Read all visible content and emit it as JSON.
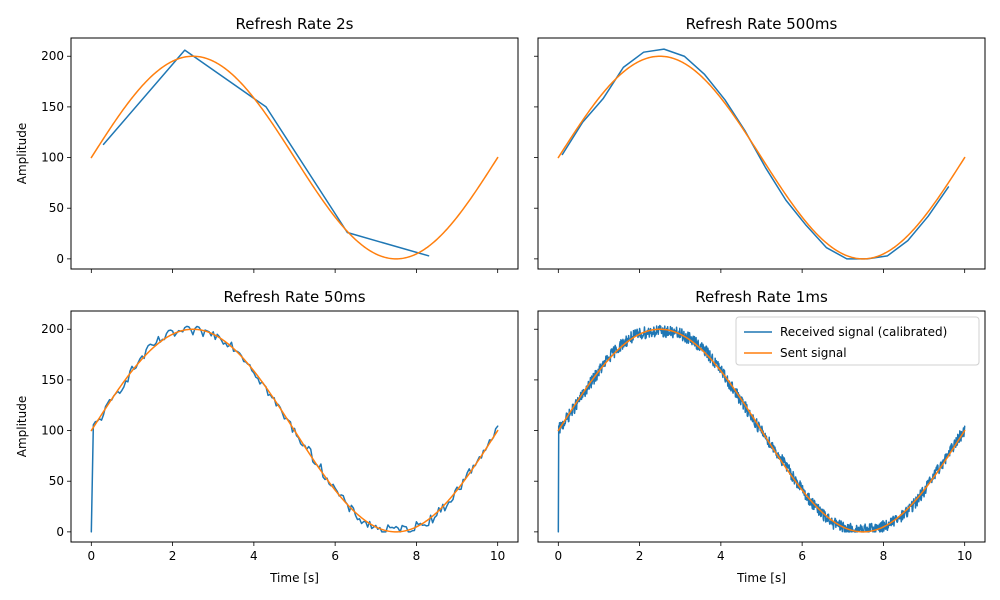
{
  "chart_data": [
    {
      "type": "line",
      "title": "Refresh Rate 2s",
      "xlabel": "",
      "ylabel": "Amplitude",
      "xlim": [
        -0.5,
        10.5
      ],
      "ylim": [
        -10,
        218
      ],
      "xticks": [
        0,
        2,
        4,
        6,
        8,
        10
      ],
      "yticks": [
        0,
        50,
        100,
        150,
        200
      ],
      "show_xticklabels": false,
      "show_yticklabels": true,
      "series": [
        {
          "name": "Received signal (calibrated)",
          "color": "#1f77b4",
          "kind": "points",
          "x": [
            0.3,
            2.3,
            4.3,
            6.3,
            8.3
          ],
          "y": [
            113,
            206,
            150,
            26,
            3
          ]
        },
        {
          "name": "Sent signal",
          "color": "#ff7f0e",
          "kind": "function",
          "formula": "100 + 100*sin(2*pi*x/10)",
          "x_range": [
            0,
            10
          ]
        }
      ]
    },
    {
      "type": "line",
      "title": "Refresh Rate 500ms",
      "xlabel": "",
      "ylabel": "",
      "xlim": [
        -0.5,
        10.5
      ],
      "ylim": [
        -10,
        218
      ],
      "xticks": [
        0,
        2,
        4,
        6,
        8,
        10
      ],
      "yticks": [
        0,
        50,
        100,
        150,
        200
      ],
      "show_xticklabels": false,
      "show_yticklabels": false,
      "series": [
        {
          "name": "Received signal (calibrated)",
          "color": "#1f77b4",
          "kind": "points",
          "x": [
            0.1,
            0.6,
            1.1,
            1.6,
            2.1,
            2.6,
            3.1,
            3.6,
            4.1,
            4.6,
            5.1,
            5.6,
            6.1,
            6.6,
            7.1,
            7.6,
            8.1,
            8.6,
            9.1,
            9.6
          ],
          "y": [
            103,
            135,
            158,
            189,
            204,
            207,
            200,
            182,
            157,
            126,
            90,
            58,
            33,
            11,
            0,
            0,
            3,
            18,
            42,
            71
          ]
        },
        {
          "name": "Sent signal",
          "color": "#ff7f0e",
          "kind": "function",
          "formula": "100 + 100*sin(2*pi*x/10)",
          "x_range": [
            0,
            10
          ]
        }
      ]
    },
    {
      "type": "line",
      "title": "Refresh Rate 50ms",
      "xlabel": "Time [s]",
      "ylabel": "Amplitude",
      "xlim": [
        -0.5,
        10.5
      ],
      "ylim": [
        -10,
        218
      ],
      "xticks": [
        0,
        2,
        4,
        6,
        8,
        10
      ],
      "yticks": [
        0,
        50,
        100,
        150,
        200
      ],
      "show_xticklabels": true,
      "show_yticklabels": true,
      "series": [
        {
          "name": "Received signal (calibrated)",
          "color": "#1f77b4",
          "kind": "noisy",
          "formula": "calibrated copy of the sent signal",
          "start_value": 0,
          "step": 0.05,
          "noise_amplitude": 5,
          "x_range": [
            0,
            10
          ]
        },
        {
          "name": "Sent signal",
          "color": "#ff7f0e",
          "kind": "function",
          "formula": "100 + 100*sin(2*pi*x/10)",
          "x_range": [
            0,
            10
          ]
        }
      ]
    },
    {
      "type": "line",
      "title": "Refresh Rate 1ms",
      "xlabel": "Time [s]",
      "ylabel": "",
      "xlim": [
        -0.5,
        10.5
      ],
      "ylim": [
        -10,
        218
      ],
      "xticks": [
        0,
        2,
        4,
        6,
        8,
        10
      ],
      "yticks": [
        0,
        50,
        100,
        150,
        200
      ],
      "show_xticklabels": true,
      "show_yticklabels": false,
      "legend": "top-right",
      "series": [
        {
          "name": "Received signal (calibrated)",
          "color": "#1f77b4",
          "kind": "noisy",
          "formula": "calibrated copy of the sent signal",
          "start_value": 0,
          "step": 0.01,
          "noise_amplitude": 6,
          "x_range": [
            0,
            10
          ]
        },
        {
          "name": "Sent signal",
          "color": "#ff7f0e",
          "kind": "function",
          "formula": "100 + 100*sin(2*pi*x/10)",
          "x_range": [
            0,
            10
          ]
        }
      ]
    }
  ]
}
